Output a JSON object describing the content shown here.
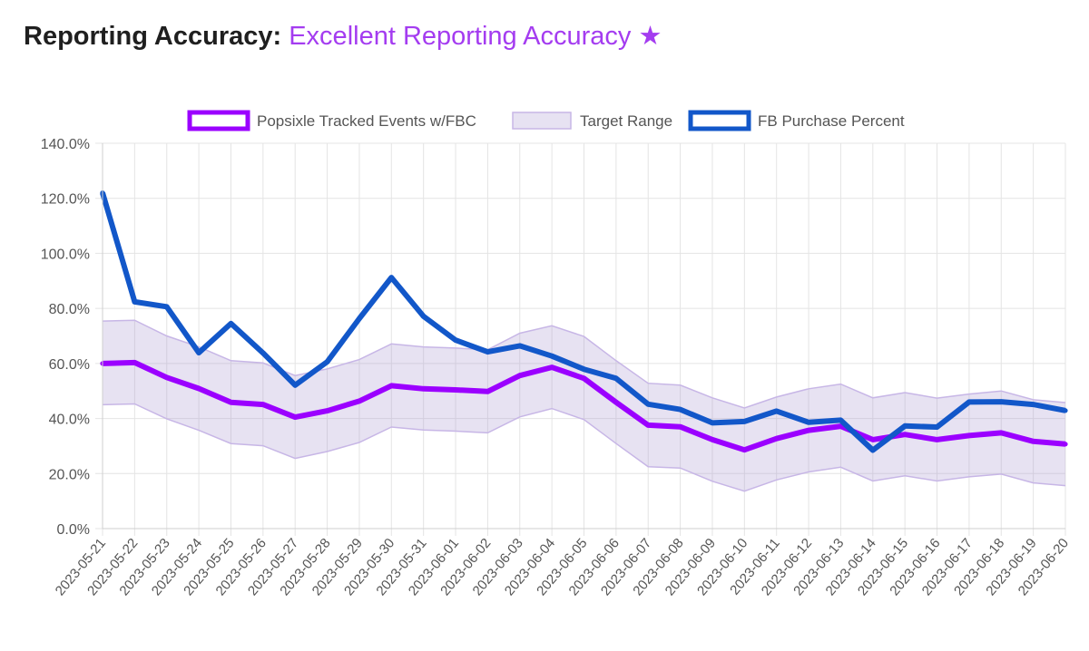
{
  "header": {
    "label": "Reporting Accuracy:",
    "value": "Excellent Reporting Accuracy",
    "star": "★"
  },
  "colors": {
    "popsixle": "#9b00ff",
    "target_fill": "rgba(170, 150, 210, 0.28)",
    "target_border": "#c7b6e6",
    "fb": "#1257c9",
    "grid": "#e4e4e4",
    "axis_text": "#555555",
    "legend_text": "#555555"
  },
  "chart_data": {
    "type": "line",
    "title": "",
    "xlabel": "",
    "ylabel": "",
    "ylim": [
      0,
      140
    ],
    "y_ticks": [
      0,
      20,
      40,
      60,
      80,
      100,
      120,
      140
    ],
    "y_tick_labels": [
      "0.0%",
      "20.0%",
      "40.0%",
      "60.0%",
      "80.0%",
      "100.0%",
      "120.0%",
      "140.0%"
    ],
    "grid": true,
    "legend_position": "top",
    "categories": [
      "2023-05-21",
      "2023-05-22",
      "2023-05-23",
      "2023-05-24",
      "2023-05-25",
      "2023-05-26",
      "2023-05-27",
      "2023-05-28",
      "2023-05-29",
      "2023-05-30",
      "2023-05-31",
      "2023-06-01",
      "2023-06-02",
      "2023-06-03",
      "2023-06-04",
      "2023-06-05",
      "2023-06-06",
      "2023-06-07",
      "2023-06-08",
      "2023-06-09",
      "2023-06-10",
      "2023-06-11",
      "2023-06-12",
      "2023-06-13",
      "2023-06-14",
      "2023-06-15",
      "2023-06-16",
      "2023-06-17",
      "2023-06-18",
      "2023-06-19",
      "2023-06-20"
    ],
    "series": [
      {
        "name": "Popsixle Tracked Events w/FBC",
        "kind": "line",
        "values": [
          60,
          60.3,
          54.9,
          50.9,
          45.9,
          45.1,
          40.5,
          42.8,
          46.3,
          51.9,
          50.8,
          50.4,
          49.8,
          55.6,
          58.6,
          54.6,
          45.9,
          37.6,
          37,
          32.3,
          28.6,
          32.7,
          35.7,
          37.2,
          32.3,
          34.2,
          32.3,
          33.8,
          34.8,
          31.7,
          30.7
        ]
      },
      {
        "name": "Target Range",
        "kind": "band",
        "upper": [
          75.4,
          75.7,
          70,
          66,
          61,
          60.2,
          55.6,
          58,
          61.4,
          67.1,
          66,
          65.6,
          65,
          71,
          73.7,
          69.8,
          61,
          52.8,
          52.1,
          47.5,
          43.8,
          47.8,
          50.8,
          52.5,
          47.5,
          49.4,
          47.4,
          48.9,
          50,
          46.8,
          45.8
        ],
        "lower": [
          45,
          45.3,
          39.9,
          35.7,
          30.9,
          30.1,
          25.5,
          28,
          31.3,
          36.9,
          35.8,
          35.4,
          34.8,
          40.6,
          43.6,
          39.6,
          30.9,
          22.5,
          22,
          17.2,
          13.6,
          17.7,
          20.6,
          22.3,
          17.3,
          19.2,
          17.3,
          18.8,
          19.8,
          16.6,
          15.6
        ]
      },
      {
        "name": "FB Purchase Percent",
        "kind": "line",
        "values": [
          122,
          82.4,
          80.6,
          63.9,
          74.5,
          63.8,
          52.1,
          60.6,
          76.3,
          91.2,
          77.1,
          68.5,
          64.2,
          66.4,
          62.7,
          57.9,
          54.6,
          45.2,
          43.3,
          38.4,
          38.9,
          42.7,
          38.6,
          39.4,
          28.5,
          37.3,
          36.9,
          46,
          46.1,
          45.1,
          42.9
        ]
      }
    ]
  }
}
